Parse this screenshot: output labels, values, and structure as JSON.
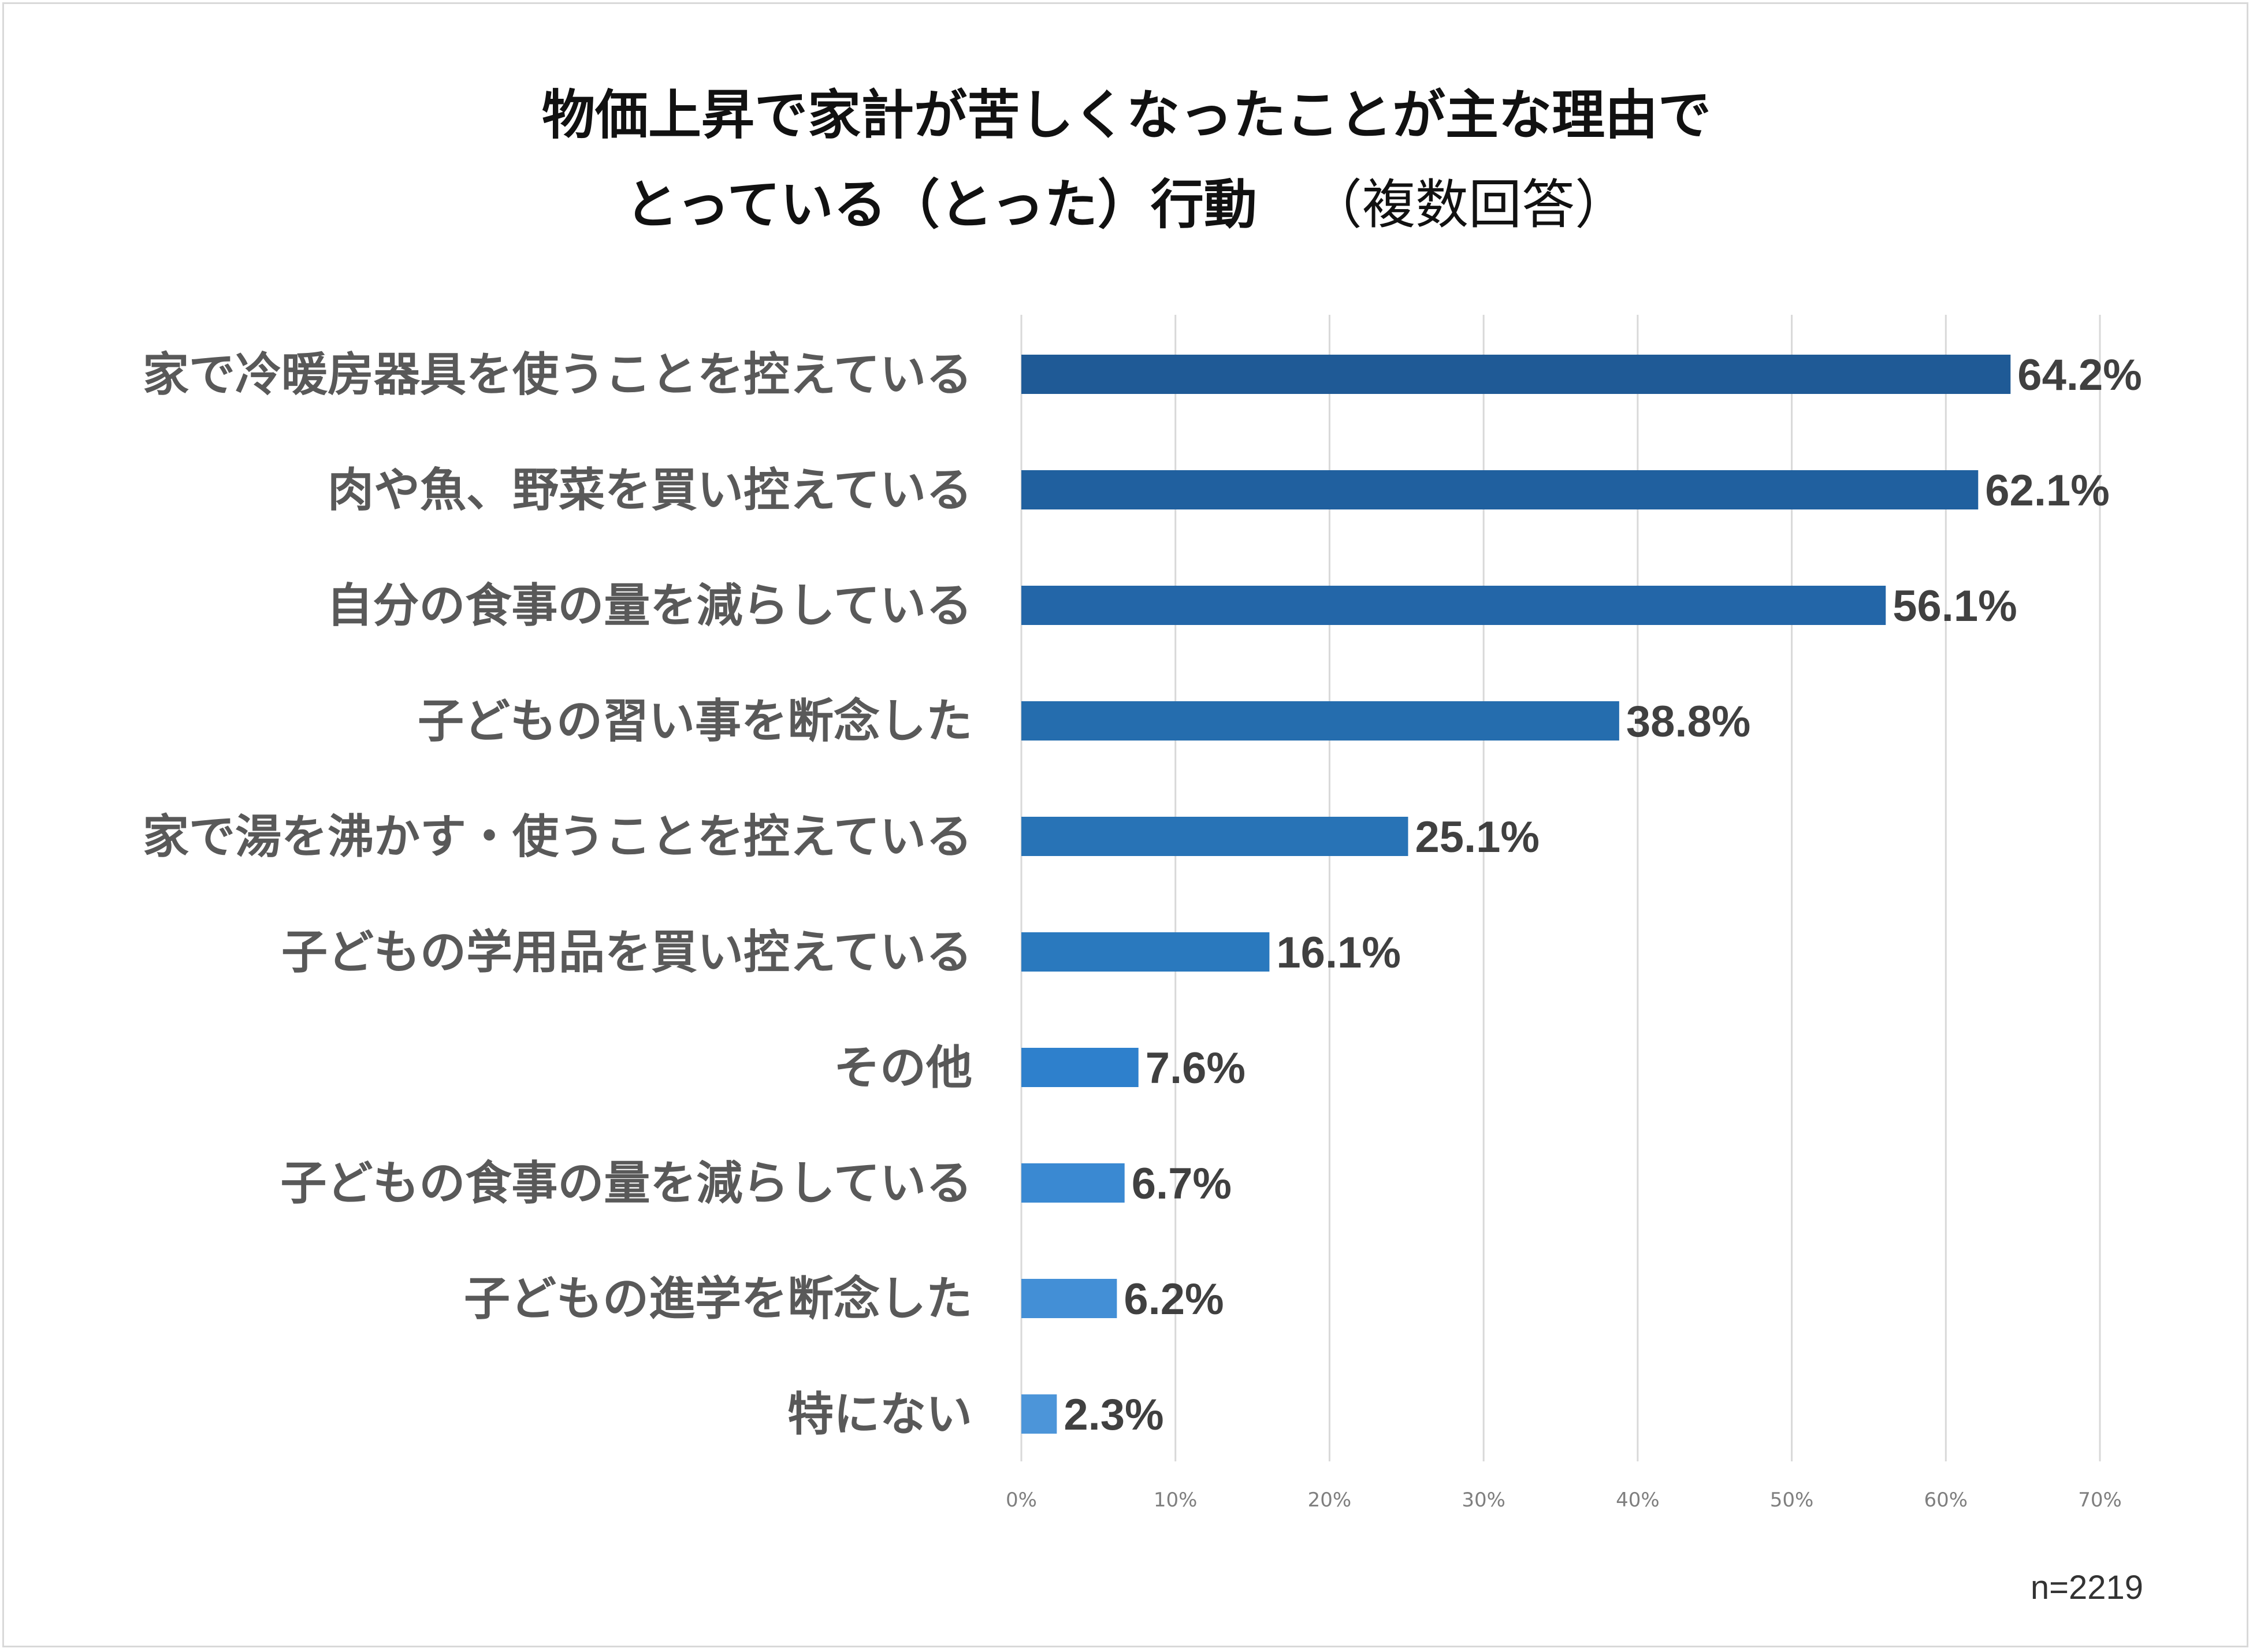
{
  "title_line1": "物価上昇で家計が苦しくなったことが主な理由で",
  "title_line2": "とっている（とった）行動",
  "title_note": "（複数回答）",
  "sample_note": "n=2219",
  "chart_data": {
    "type": "bar",
    "orientation": "horizontal",
    "categories": [
      "家で冷暖房器具を使うことを控えている",
      "肉や魚、野菜を買い控えている",
      "自分の食事の量を減らしている",
      "子どもの習い事を断念した",
      "家で湯を沸かす・使うことを控えている",
      "子どもの学用品を買い控えている",
      "その他",
      "子どもの食事の量を減らしている",
      "子どもの進学を断念した",
      "特にない"
    ],
    "values": [
      64.2,
      62.1,
      56.1,
      38.8,
      25.1,
      16.1,
      7.6,
      6.7,
      6.2,
      2.3
    ],
    "value_labels": [
      "64.2%",
      "62.1%",
      "56.1%",
      "38.8%",
      "25.1%",
      "16.1%",
      "7.6%",
      "6.7%",
      "6.2%",
      "2.3%"
    ],
    "xlim": [
      0,
      70
    ],
    "xticks": [
      0,
      10,
      20,
      30,
      40,
      50,
      60,
      70
    ],
    "xtick_labels": [
      "0%",
      "10%",
      "20%",
      "30%",
      "40%",
      "50%",
      "60%",
      "70%"
    ],
    "grid": true,
    "legend": "none",
    "bar_colors": [
      "#1f5a96",
      "#20609f",
      "#2366a8",
      "#256dae",
      "#2873b6",
      "#2a79be",
      "#2e80cc",
      "#3a89d2",
      "#438fd6",
      "#4c95d9"
    ]
  }
}
